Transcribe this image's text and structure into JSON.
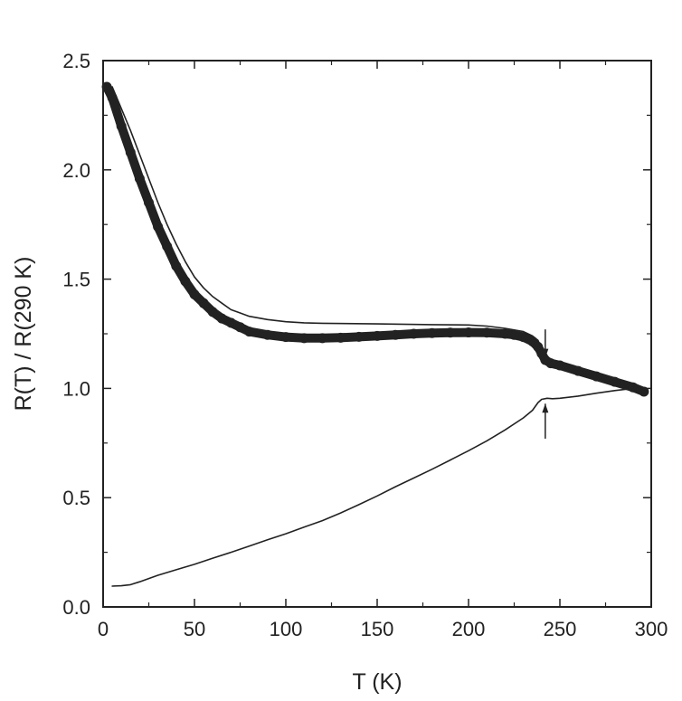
{
  "chart_data": {
    "type": "line",
    "title": "",
    "xlabel": "T (K)",
    "ylabel": "R(T) / R(290 K)",
    "xlim": [
      0,
      300
    ],
    "ylim": [
      0,
      2.5
    ],
    "grid": false,
    "x_ticks": [
      0,
      50,
      100,
      150,
      200,
      250,
      300
    ],
    "x_tick_labels": [
      "0",
      "50",
      "100",
      "150",
      "200",
      "250",
      "300"
    ],
    "y_ticks": [
      0,
      0.5,
      1.0,
      1.5,
      2.0,
      2.5
    ],
    "y_tick_labels": [
      "0.0",
      "0.5",
      "1.0",
      "1.5",
      "2.0",
      "2.5"
    ],
    "series": [
      {
        "style": "thick",
        "color": "#222222",
        "points": [
          [
            2,
            2.38
          ],
          [
            5,
            2.33
          ],
          [
            10,
            2.2
          ],
          [
            15,
            2.08
          ],
          [
            20,
            1.96
          ],
          [
            25,
            1.85
          ],
          [
            30,
            1.74
          ],
          [
            35,
            1.65
          ],
          [
            40,
            1.56
          ],
          [
            45,
            1.49
          ],
          [
            50,
            1.43
          ],
          [
            55,
            1.39
          ],
          [
            60,
            1.35
          ],
          [
            65,
            1.32
          ],
          [
            70,
            1.3
          ],
          [
            75,
            1.28
          ],
          [
            80,
            1.26
          ],
          [
            90,
            1.245
          ],
          [
            100,
            1.235
          ],
          [
            110,
            1.23
          ],
          [
            120,
            1.23
          ],
          [
            130,
            1.232
          ],
          [
            140,
            1.236
          ],
          [
            150,
            1.24
          ],
          [
            160,
            1.245
          ],
          [
            170,
            1.25
          ],
          [
            180,
            1.253
          ],
          [
            190,
            1.255
          ],
          [
            200,
            1.256
          ],
          [
            210,
            1.255
          ],
          [
            220,
            1.25
          ],
          [
            225,
            1.245
          ],
          [
            230,
            1.235
          ],
          [
            235,
            1.215
          ],
          [
            238,
            1.19
          ],
          [
            240,
            1.16
          ],
          [
            242,
            1.13
          ],
          [
            245,
            1.115
          ],
          [
            250,
            1.105
          ],
          [
            260,
            1.08
          ],
          [
            270,
            1.055
          ],
          [
            280,
            1.03
          ],
          [
            290,
            1.005
          ],
          [
            296,
            0.985
          ]
        ]
      },
      {
        "style": "thin",
        "color": "#222222",
        "points": [
          [
            5,
            2.38
          ],
          [
            10,
            2.28
          ],
          [
            15,
            2.18
          ],
          [
            20,
            2.07
          ],
          [
            25,
            1.96
          ],
          [
            30,
            1.85
          ],
          [
            35,
            1.75
          ],
          [
            40,
            1.66
          ],
          [
            45,
            1.58
          ],
          [
            50,
            1.51
          ],
          [
            55,
            1.46
          ],
          [
            60,
            1.42
          ],
          [
            65,
            1.39
          ],
          [
            70,
            1.36
          ],
          [
            75,
            1.345
          ],
          [
            80,
            1.33
          ],
          [
            90,
            1.315
          ],
          [
            100,
            1.305
          ],
          [
            110,
            1.3
          ],
          [
            120,
            1.298
          ],
          [
            150,
            1.295
          ],
          [
            180,
            1.292
          ],
          [
            200,
            1.29
          ],
          [
            210,
            1.285
          ],
          [
            220,
            1.275
          ],
          [
            230,
            1.26
          ],
          [
            235,
            1.24
          ],
          [
            238,
            1.22
          ],
          [
            240,
            1.18
          ],
          [
            242,
            1.13
          ],
          [
            245,
            1.115
          ],
          [
            250,
            1.105
          ],
          [
            260,
            1.08
          ],
          [
            270,
            1.055
          ],
          [
            280,
            1.03
          ],
          [
            290,
            1.005
          ]
        ]
      },
      {
        "style": "thin",
        "color": "#222222",
        "points": [
          [
            5,
            0.095
          ],
          [
            10,
            0.097
          ],
          [
            15,
            0.102
          ],
          [
            20,
            0.115
          ],
          [
            25,
            0.13
          ],
          [
            30,
            0.145
          ],
          [
            40,
            0.17
          ],
          [
            50,
            0.195
          ],
          [
            60,
            0.223
          ],
          [
            70,
            0.25
          ],
          [
            80,
            0.278
          ],
          [
            90,
            0.307
          ],
          [
            100,
            0.335
          ],
          [
            110,
            0.365
          ],
          [
            120,
            0.395
          ],
          [
            130,
            0.43
          ],
          [
            140,
            0.468
          ],
          [
            150,
            0.508
          ],
          [
            160,
            0.55
          ],
          [
            170,
            0.59
          ],
          [
            180,
            0.63
          ],
          [
            190,
            0.672
          ],
          [
            200,
            0.715
          ],
          [
            210,
            0.76
          ],
          [
            220,
            0.81
          ],
          [
            230,
            0.865
          ],
          [
            235,
            0.9
          ],
          [
            238,
            0.935
          ],
          [
            240,
            0.95
          ],
          [
            243,
            0.955
          ],
          [
            246,
            0.953
          ],
          [
            250,
            0.955
          ],
          [
            260,
            0.965
          ],
          [
            270,
            0.978
          ],
          [
            280,
            0.99
          ],
          [
            290,
            1.0
          ],
          [
            296,
            1.0
          ]
        ]
      }
    ],
    "annotations": [
      {
        "kind": "arrow-down",
        "x": 242,
        "y_from": 1.27,
        "y_to": 1.14
      },
      {
        "kind": "arrow-up",
        "x": 242,
        "y_from": 0.77,
        "y_to": 0.93
      }
    ]
  }
}
